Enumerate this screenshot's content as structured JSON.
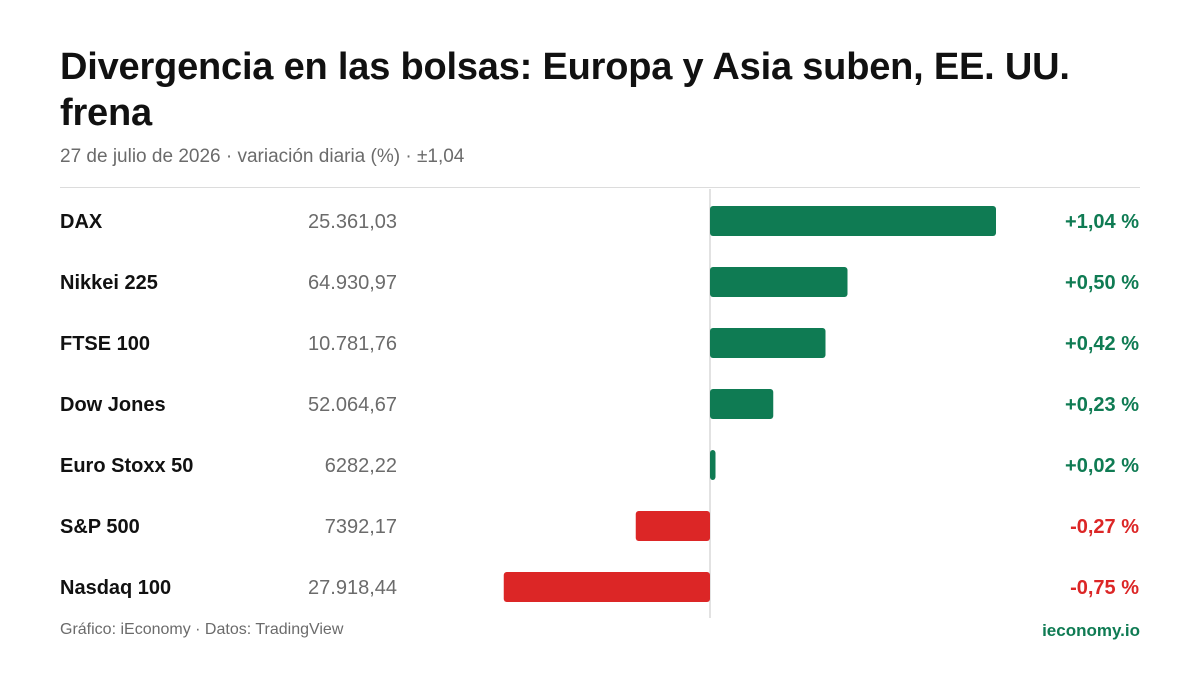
{
  "header": {
    "title": "Divergencia en las bolsas: Europa y Asia suben, EE. UU. frena",
    "subtitle": "27 de julio de 2026 · variación diaria (%) · ±1,04"
  },
  "footer": {
    "credit": "Gráfico: iEconomy · Datos: TradingView",
    "brand": "ieconomy.io"
  },
  "colors": {
    "positive": "#0f7b53",
    "negative": "#dc2626",
    "axis": "#d9d9d9"
  },
  "chart_data": {
    "type": "bar",
    "orientation": "horizontal",
    "xlim": [
      -1.04,
      1.04
    ],
    "grid": false,
    "rows": [
      {
        "name": "DAX",
        "level": "25.361,03",
        "value": 1.04,
        "value_label": "+1,04 %"
      },
      {
        "name": "Nikkei 225",
        "level": "64.930,97",
        "value": 0.5,
        "value_label": "+0,50 %"
      },
      {
        "name": "FTSE 100",
        "level": "10.781,76",
        "value": 0.42,
        "value_label": "+0,42 %"
      },
      {
        "name": "Dow Jones",
        "level": "52.064,67",
        "value": 0.23,
        "value_label": "+0,23 %"
      },
      {
        "name": "Euro Stoxx 50",
        "level": "6282,22",
        "value": 0.02,
        "value_label": "+0,02 %"
      },
      {
        "name": "S&P 500",
        "level": "7392,17",
        "value": -0.27,
        "value_label": "-0,27 %"
      },
      {
        "name": "Nasdaq 100",
        "level": "27.918,44",
        "value": -0.75,
        "value_label": "-0,75 %"
      }
    ]
  }
}
